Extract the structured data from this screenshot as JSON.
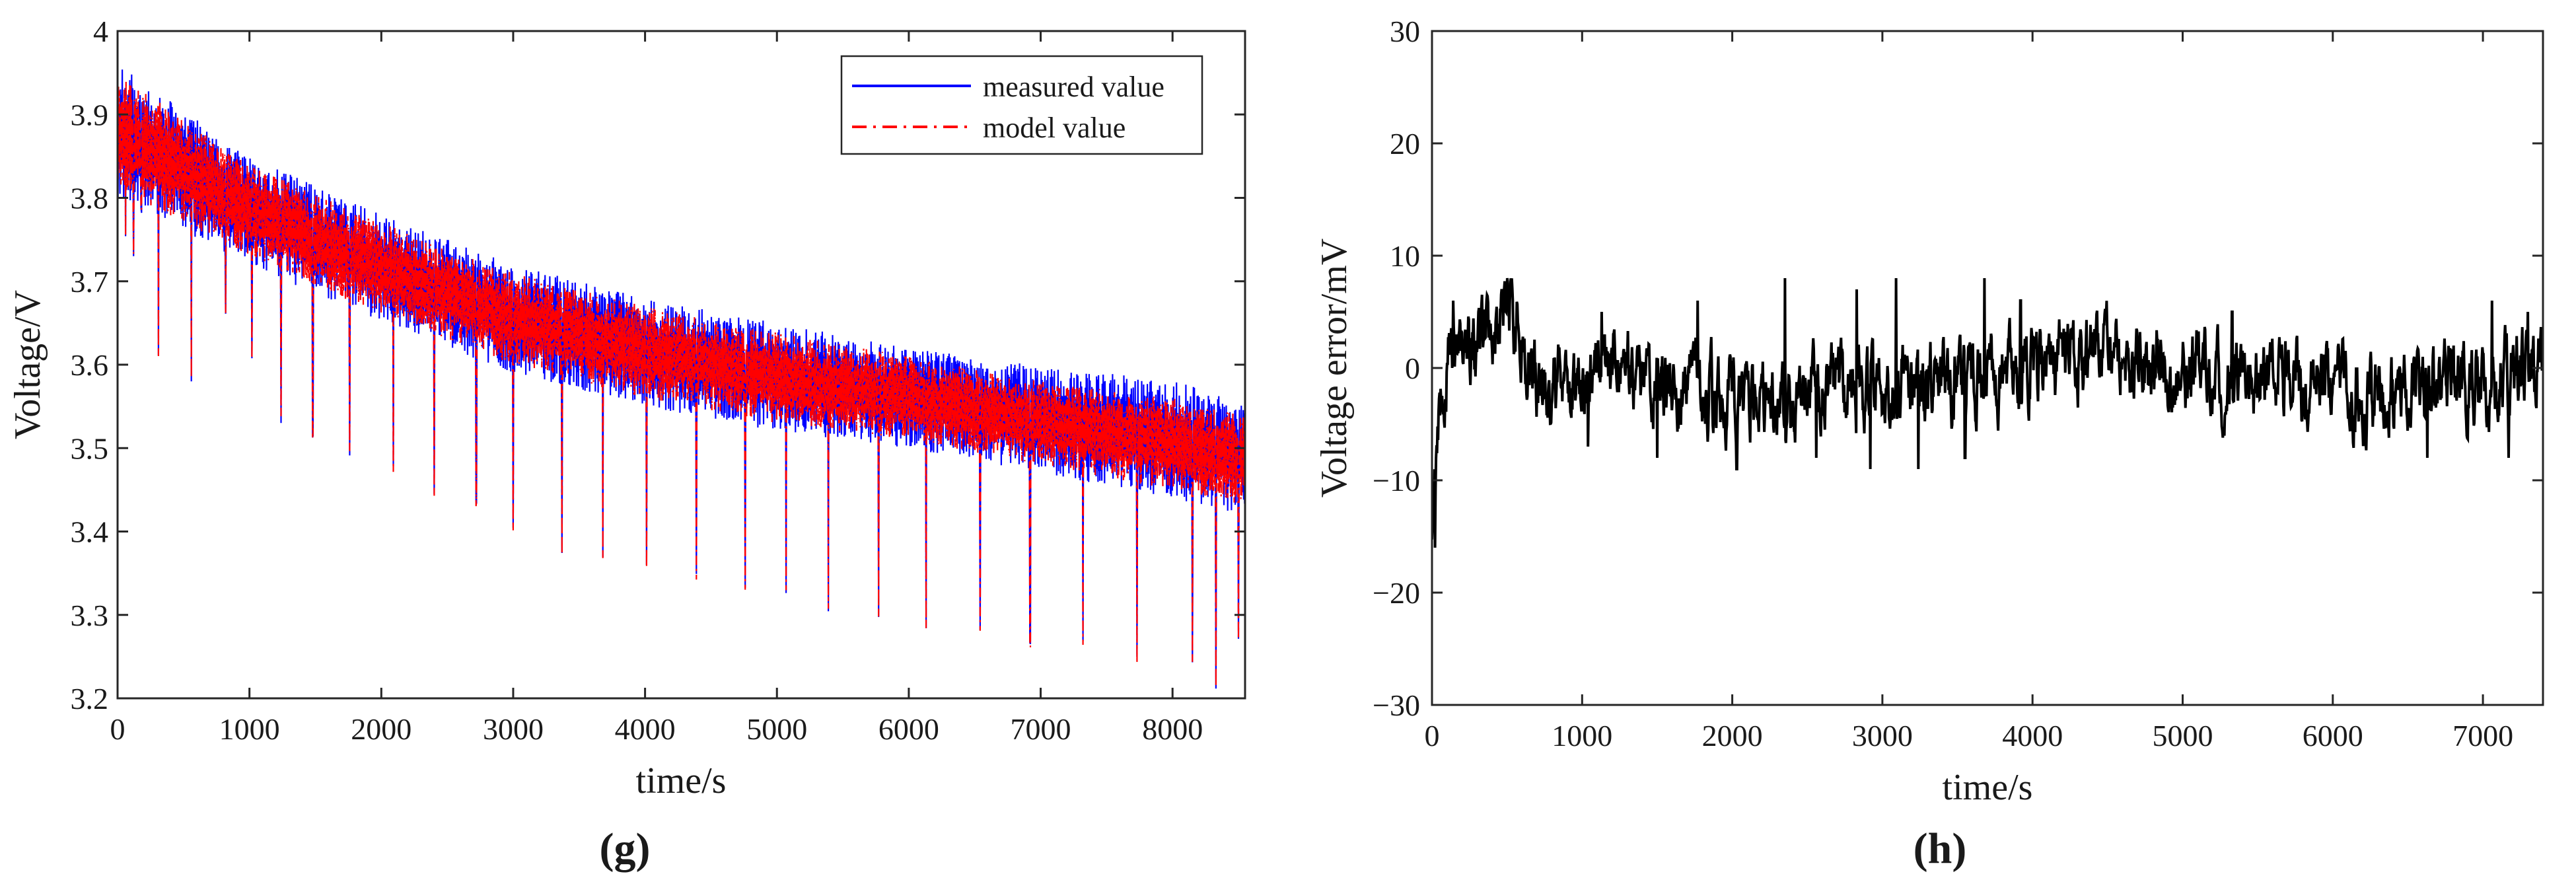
{
  "chart_data": [
    {
      "panel": "g",
      "panel_label": "(g)",
      "type": "line",
      "title": "",
      "xlabel": "time/s",
      "ylabel": "Voltage/V",
      "xlim": [
        0,
        8550
      ],
      "ylim": [
        3.2,
        4.0
      ],
      "xticks": [
        "0",
        "1000",
        "2000",
        "3000",
        "4000",
        "5000",
        "6000",
        "7000",
        "8000"
      ],
      "yticks": [
        "3.2",
        "3.3",
        "3.4",
        "3.5",
        "3.6",
        "3.7",
        "3.8",
        "3.9",
        "4"
      ],
      "legend_position": "top-right",
      "series": [
        {
          "name": "measured value",
          "color": "#0000ff",
          "style": "solid",
          "description": "rapidly fluctuating voltage; envelope upper trend (t,V)",
          "upper": [
            [
              0,
              3.96
            ],
            [
              1000,
              3.85
            ],
            [
              2000,
              3.78
            ],
            [
              3000,
              3.72
            ],
            [
              4000,
              3.68
            ],
            [
              5000,
              3.65
            ],
            [
              6000,
              3.62
            ],
            [
              7000,
              3.6
            ],
            [
              8000,
              3.58
            ],
            [
              8550,
              3.56
            ]
          ],
          "lower": [
            [
              0,
              3.8
            ],
            [
              1000,
              3.72
            ],
            [
              2000,
              3.65
            ],
            [
              3000,
              3.59
            ],
            [
              4000,
              3.55
            ],
            [
              5000,
              3.52
            ],
            [
              6000,
              3.5
            ],
            [
              7000,
              3.47
            ],
            [
              8000,
              3.44
            ],
            [
              8550,
              3.42
            ]
          ],
          "dips": [
            [
              60,
              3.75
            ],
            [
              120,
              3.73
            ],
            [
              180,
              3.78
            ],
            [
              310,
              3.61
            ],
            [
              560,
              3.58
            ],
            [
              820,
              3.66
            ],
            [
              1020,
              3.6
            ],
            [
              1240,
              3.53
            ],
            [
              1480,
              3.51
            ],
            [
              1760,
              3.49
            ],
            [
              2090,
              3.47
            ],
            [
              2400,
              3.44
            ],
            [
              2720,
              3.43
            ],
            [
              3000,
              3.4
            ],
            [
              3370,
              3.37
            ],
            [
              3680,
              3.36
            ],
            [
              4010,
              3.35
            ],
            [
              4390,
              3.34
            ],
            [
              4760,
              3.33
            ],
            [
              5070,
              3.32
            ],
            [
              5390,
              3.3
            ],
            [
              5770,
              3.29
            ],
            [
              6130,
              3.28
            ],
            [
              6540,
              3.28
            ],
            [
              6920,
              3.26
            ],
            [
              7320,
              3.26
            ],
            [
              7730,
              3.24
            ],
            [
              8150,
              3.24
            ],
            [
              8330,
              3.21
            ],
            [
              8500,
              3.27
            ]
          ]
        },
        {
          "name": "model value",
          "color": "#ff0000",
          "style": "dash-dot",
          "description": "closely tracks the measured voltage",
          "upper": [
            [
              0,
              3.95
            ],
            [
              1000,
              3.84
            ],
            [
              2000,
              3.77
            ],
            [
              3000,
              3.71
            ],
            [
              4000,
              3.67
            ],
            [
              5000,
              3.64
            ],
            [
              6000,
              3.61
            ],
            [
              7000,
              3.58
            ],
            [
              8000,
              3.56
            ],
            [
              8550,
              3.54
            ]
          ],
          "lower": [
            [
              0,
              3.81
            ],
            [
              1000,
              3.73
            ],
            [
              2000,
              3.66
            ],
            [
              3000,
              3.6
            ],
            [
              4000,
              3.56
            ],
            [
              5000,
              3.53
            ],
            [
              6000,
              3.51
            ],
            [
              7000,
              3.48
            ],
            [
              8000,
              3.45
            ],
            [
              8550,
              3.43
            ]
          ],
          "dips": [
            [
              60,
              3.75
            ],
            [
              120,
              3.73
            ],
            [
              180,
              3.78
            ],
            [
              310,
              3.61
            ],
            [
              560,
              3.58
            ],
            [
              820,
              3.66
            ],
            [
              1020,
              3.6
            ],
            [
              1240,
              3.53
            ],
            [
              1480,
              3.51
            ],
            [
              1760,
              3.49
            ],
            [
              2090,
              3.47
            ],
            [
              2400,
              3.44
            ],
            [
              2720,
              3.43
            ],
            [
              3000,
              3.4
            ],
            [
              3370,
              3.37
            ],
            [
              3680,
              3.36
            ],
            [
              4010,
              3.35
            ],
            [
              4390,
              3.34
            ],
            [
              4760,
              3.33
            ],
            [
              5070,
              3.32
            ],
            [
              5390,
              3.3
            ],
            [
              5770,
              3.29
            ],
            [
              6130,
              3.28
            ],
            [
              6540,
              3.28
            ],
            [
              6920,
              3.26
            ],
            [
              7320,
              3.26
            ],
            [
              7730,
              3.24
            ],
            [
              8150,
              3.24
            ],
            [
              8330,
              3.21
            ],
            [
              8500,
              3.27
            ]
          ]
        }
      ]
    },
    {
      "panel": "h",
      "panel_label": "(h)",
      "type": "line",
      "title": "",
      "xlabel": "time/s",
      "ylabel": "Voltage error/mV",
      "xlim": [
        0,
        7400
      ],
      "ylim": [
        -30,
        30
      ],
      "xticks": [
        "0",
        "1000",
        "2000",
        "3000",
        "4000",
        "5000",
        "6000",
        "7000"
      ],
      "yticks": [
        "−30",
        "−20",
        "−10",
        "0",
        "10",
        "20",
        "30"
      ],
      "series": [
        {
          "name": "voltage error",
          "color": "#000000",
          "style": "solid",
          "mean_trend": [
            [
              0,
              -16
            ],
            [
              40,
              -6
            ],
            [
              100,
              1
            ],
            [
              200,
              2
            ],
            [
              300,
              1
            ],
            [
              400,
              3
            ],
            [
              500,
              6
            ],
            [
              600,
              2
            ],
            [
              700,
              -1
            ],
            [
              800,
              -2
            ],
            [
              1000,
              -1
            ],
            [
              1200,
              1
            ],
            [
              1500,
              -2
            ],
            [
              2000,
              -3
            ],
            [
              2500,
              -2
            ],
            [
              3000,
              -2
            ],
            [
              3500,
              -1
            ],
            [
              4000,
              0
            ],
            [
              4500,
              1
            ],
            [
              5000,
              0
            ],
            [
              5500,
              -1
            ],
            [
              6000,
              -2
            ],
            [
              6500,
              -2
            ],
            [
              7000,
              -1
            ],
            [
              7400,
              0
            ]
          ],
          "spikes": [
            [
              20,
              -16
            ],
            [
              140,
              6
            ],
            [
              500,
              8
            ],
            [
              1040,
              -7
            ],
            [
              1130,
              5
            ],
            [
              1500,
              -8
            ],
            [
              1770,
              6
            ],
            [
              2030,
              -9
            ],
            [
              2350,
              8
            ],
            [
              2560,
              -8
            ],
            [
              2830,
              7
            ],
            [
              2920,
              -9
            ],
            [
              3090,
              8
            ],
            [
              3240,
              -9
            ],
            [
              3550,
              -8
            ],
            [
              3680,
              8
            ],
            [
              3920,
              6
            ],
            [
              5330,
              5
            ],
            [
              6630,
              -8
            ],
            [
              7060,
              6
            ],
            [
              7170,
              -8
            ],
            [
              7300,
              5
            ]
          ],
          "noise_amplitude": 3
        }
      ]
    }
  ]
}
